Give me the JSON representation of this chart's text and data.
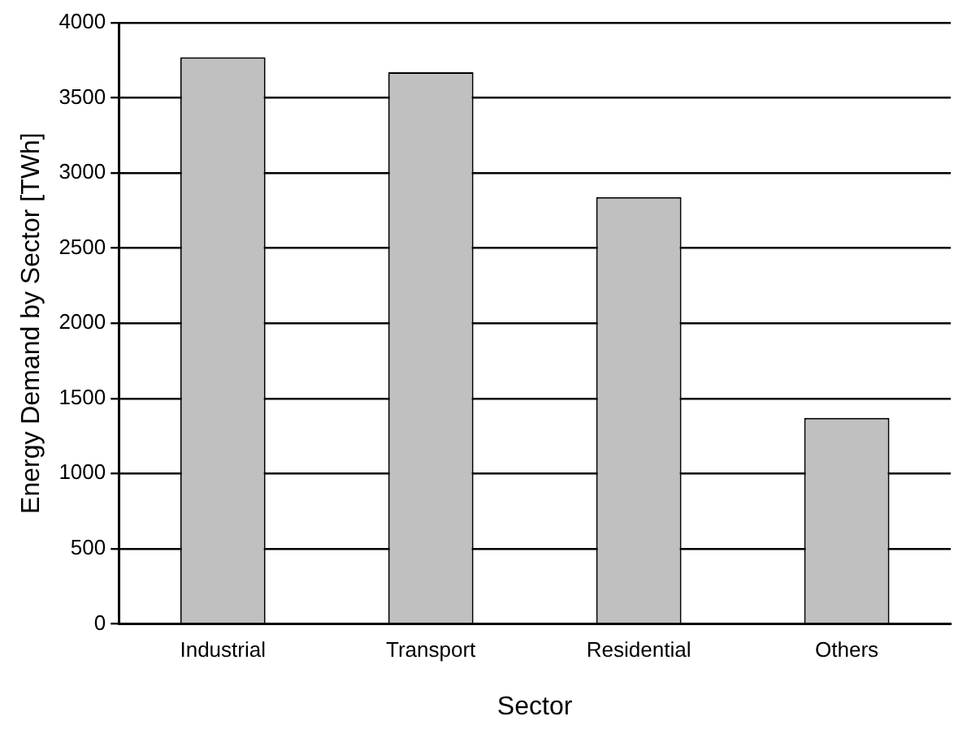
{
  "chart_data": {
    "type": "bar",
    "xlabel": "Sector",
    "ylabel": "Energy Demand by Sector [TWh]",
    "categories": [
      "Industrial",
      "Transport",
      "Residential",
      "Others"
    ],
    "values": [
      3770,
      3670,
      2840,
      1370
    ],
    "color": "#c0c0c0",
    "ylim": [
      0,
      4000
    ],
    "yticks": [
      0,
      500,
      1000,
      1500,
      2000,
      2500,
      3000,
      3500,
      4000
    ],
    "grid": "y"
  }
}
